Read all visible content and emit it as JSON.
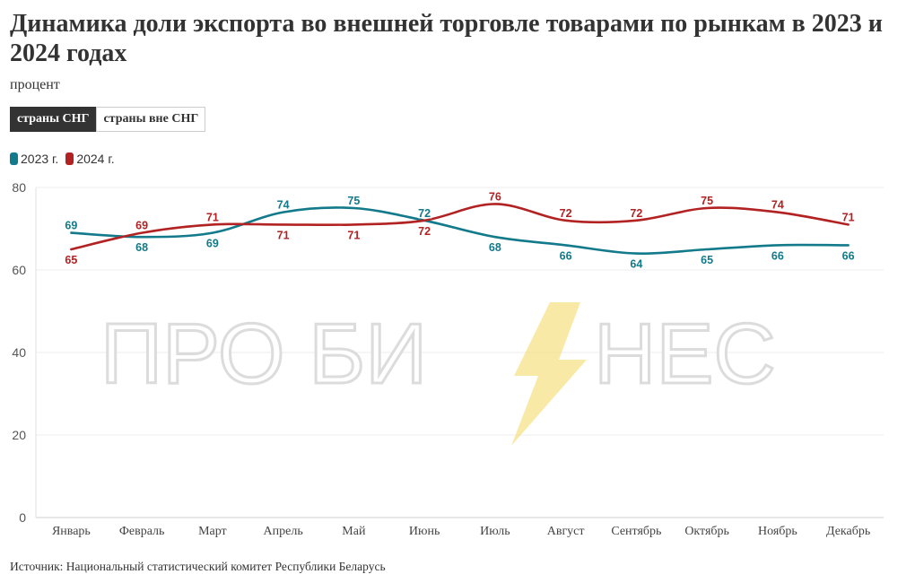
{
  "header": {
    "title": "Динамика доли экспорта во внешней торговле товарами по рынкам в 2023 и 2024 годах",
    "subtitle": "процент"
  },
  "tabs": [
    {
      "label": "страны СНГ",
      "active": true
    },
    {
      "label": "страны вне СНГ",
      "active": false
    }
  ],
  "watermark": {
    "text": "ПРО БИЗНЕС",
    "bolt_color": "#f6e18a"
  },
  "source": "Источник: Национальный статистический комитет Республики Беларусь",
  "chart_data": {
    "type": "line",
    "categories": [
      "Январь",
      "Февраль",
      "Март",
      "Апрель",
      "Май",
      "Июнь",
      "Июль",
      "Август",
      "Сентябрь",
      "Октябрь",
      "Ноябрь",
      "Декабрь"
    ],
    "series": [
      {
        "name": "2023 г.",
        "color": "#127a8a",
        "values": [
          69,
          68,
          69,
          74,
          75,
          72,
          68,
          66,
          64,
          65,
          66,
          66
        ]
      },
      {
        "name": "2024 г.",
        "color": "#b22222",
        "values": [
          65,
          69,
          71,
          71,
          71,
          72,
          76,
          72,
          72,
          75,
          74,
          71
        ]
      }
    ],
    "ylim": [
      0,
      80
    ],
    "yticks": [
      0,
      20,
      40,
      60,
      80
    ],
    "grid": true,
    "legend": "top-left"
  }
}
